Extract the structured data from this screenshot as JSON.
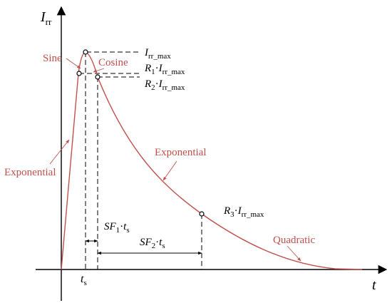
{
  "colors": {
    "curve": "#c0504d",
    "label": "#c0504d",
    "axis": "#000000",
    "guide": "#000000"
  },
  "axes": {
    "y_label_main": "I",
    "y_label_sub": "rr",
    "x_label": "t"
  },
  "markers": {
    "peak_main": "I",
    "peak_sub": "rr_max",
    "r1_coef": "R",
    "r1_idx": "1",
    "r1_dot": "·",
    "r1_I": "I",
    "r1_sub": "rr_max",
    "r2_coef": "R",
    "r2_idx": "2",
    "r2_dot": "·",
    "r2_I": "I",
    "r2_sub": "rr_max",
    "r3_coef": "R",
    "r3_idx": "3",
    "r3_dot": "·",
    "r3_I": "I",
    "r3_sub": "rr_max",
    "ts_main": "t",
    "ts_sub": "s"
  },
  "spans": {
    "sf1_main": "SF",
    "sf1_idx": "1",
    "sf1_dot": "·",
    "sf1_t": "t",
    "sf1_sub": "s",
    "sf2_main": "SF",
    "sf2_idx": "2",
    "sf2_dot": "·",
    "sf2_t": "t",
    "sf2_sub": "s"
  },
  "segments": {
    "sine": "Sine",
    "cosine": "Cosine",
    "exponential_rise": "Exponential",
    "exponential_decay": "Exponential",
    "quadratic": "Quadratic"
  }
}
